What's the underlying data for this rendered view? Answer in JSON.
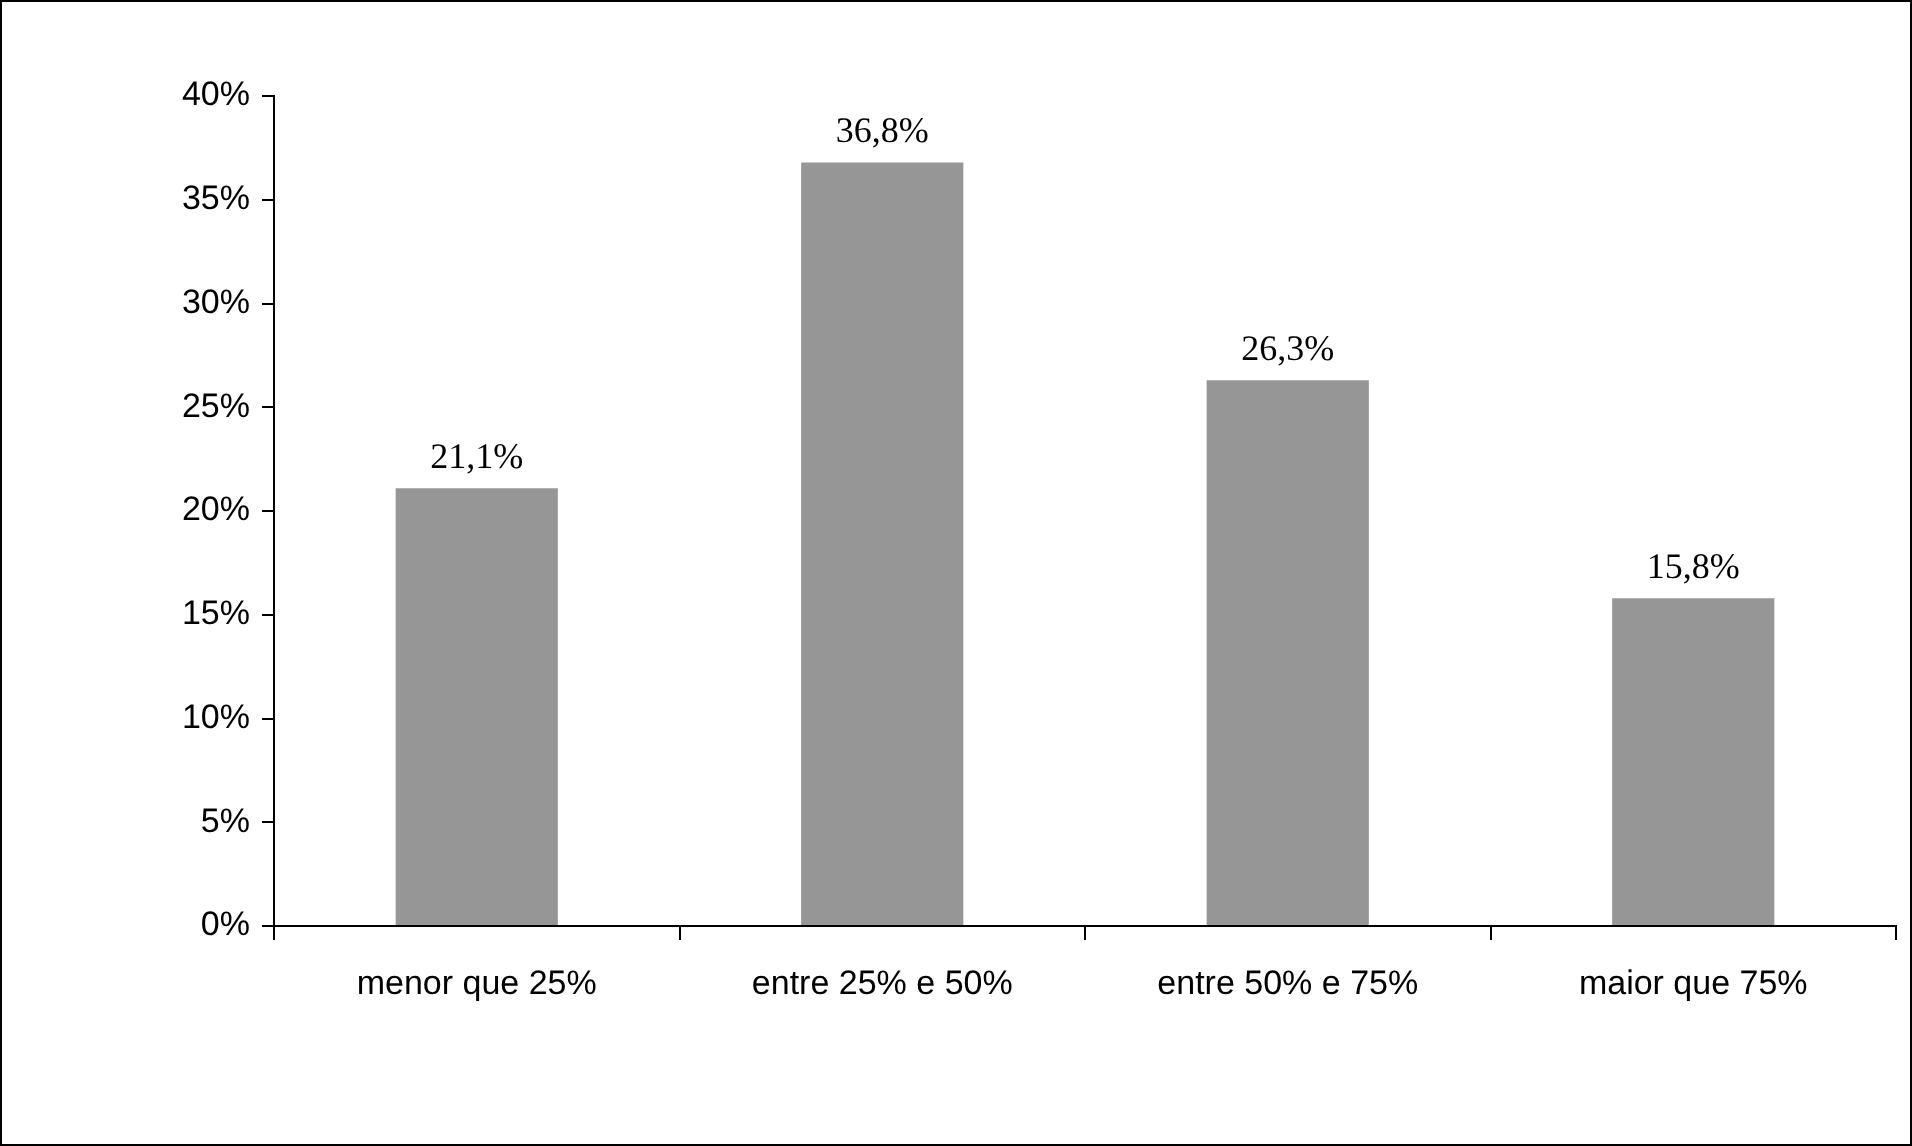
{
  "chart_data": {
    "type": "bar",
    "categories": [
      "menor que 25%",
      "entre 25% e 50%",
      "entre 50% e 75%",
      "maior que 75%"
    ],
    "values": [
      21.1,
      36.8,
      26.3,
      15.8
    ],
    "value_labels": [
      "21,1%",
      "36,8%",
      "26,3%",
      "15,8%"
    ],
    "color": "#969696",
    "ylim": [
      0,
      40
    ],
    "yticks": [
      {
        "value": 0,
        "label": "0%"
      },
      {
        "value": 5,
        "label": "5%"
      },
      {
        "value": 10,
        "label": "10%"
      },
      {
        "value": 15,
        "label": "15%"
      },
      {
        "value": 20,
        "label": "20%"
      },
      {
        "value": 25,
        "label": "25%"
      },
      {
        "value": 30,
        "label": "30%"
      },
      {
        "value": 35,
        "label": "35%"
      },
      {
        "value": 40,
        "label": "40%"
      }
    ]
  }
}
